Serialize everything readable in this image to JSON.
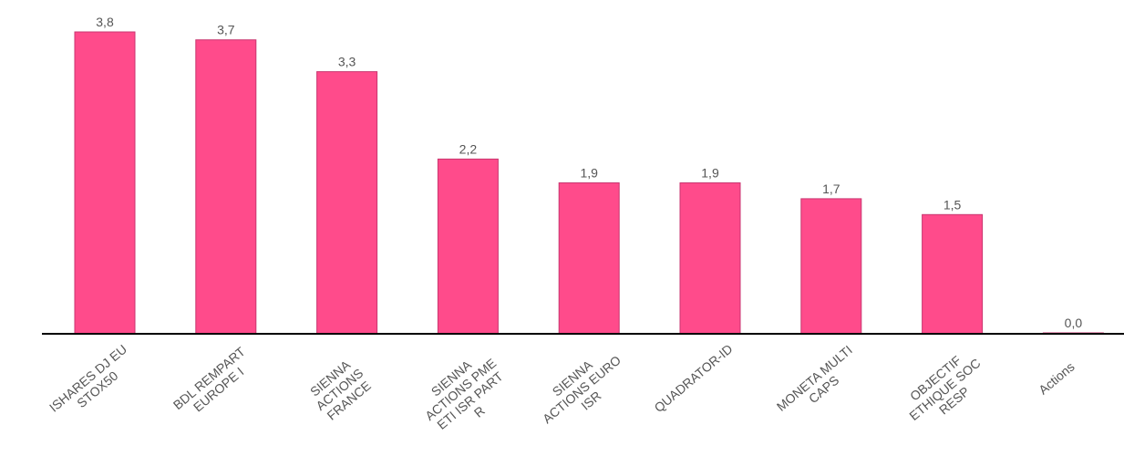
{
  "chart_data": {
    "type": "bar",
    "categories": [
      [
        "ISHARES DJ EU",
        "STOX50"
      ],
      [
        "BDL REMPART",
        "EUROPE I"
      ],
      [
        "SIENNA",
        "ACTIONS",
        "FRANCE"
      ],
      [
        "SIENNA",
        "ACTIONS PME",
        "ETI ISR PART",
        "R"
      ],
      [
        "SIENNA",
        "ACTIONS EURO",
        "ISR"
      ],
      [
        "QUADRATOR-ID"
      ],
      [
        "MONETA MULTI",
        "CAPS"
      ],
      [
        "OBJECTIF",
        "ETHIQUE SOC",
        "RESP"
      ],
      [
        "Actions"
      ]
    ],
    "values": [
      3.8,
      3.7,
      3.3,
      2.2,
      1.9,
      1.9,
      1.7,
      1.5,
      0.0
    ],
    "value_labels": [
      "3,8",
      "3,7",
      "3,3",
      "2,2",
      "1,9",
      "1,9",
      "1,7",
      "1,5",
      "0,0"
    ],
    "ylim": [
      0,
      3.8
    ],
    "grid": false,
    "legend": "none",
    "bar_color": "#ff4b8b",
    "bar_edge_color": "#c93670",
    "axis_color": "#000000",
    "label_color": "#555555"
  }
}
